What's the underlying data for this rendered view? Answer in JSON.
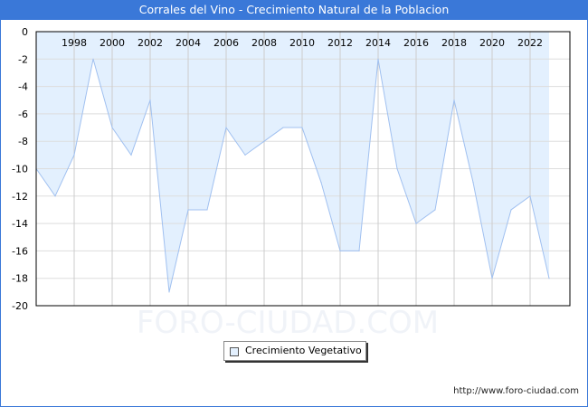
{
  "chart_data": {
    "type": "area",
    "title": "Corrales del Vino - Crecimiento Natural de la Poblacion",
    "x": [
      1996,
      1997,
      1998,
      1999,
      2000,
      2001,
      2002,
      2003,
      2004,
      2005,
      2006,
      2007,
      2008,
      2009,
      2010,
      2011,
      2012,
      2013,
      2014,
      2015,
      2016,
      2017,
      2018,
      2019,
      2020,
      2021,
      2022,
      2023
    ],
    "series": [
      {
        "name": "Crecimiento Vegetativo",
        "values": [
          -10,
          -12,
          -9,
          -2,
          -7,
          -9,
          -5,
          -19,
          -13,
          -13,
          -7,
          -9,
          -8,
          -7,
          -7,
          -11,
          -16,
          -16,
          -2,
          -10,
          -14,
          -13,
          -5,
          -11,
          -18,
          -13,
          -12,
          -18
        ]
      }
    ],
    "x_ticks": [
      "1998",
      "2000",
      "2002",
      "2004",
      "2006",
      "2008",
      "2010",
      "2012",
      "2014",
      "2016",
      "2018",
      "2020",
      "2022"
    ],
    "y_ticks": [
      "0",
      "-2",
      "-4",
      "-6",
      "-8",
      "-10",
      "-12",
      "-14",
      "-16",
      "-18",
      "-20"
    ],
    "ylim": [
      -20,
      0
    ],
    "xlim": [
      1996,
      2024
    ],
    "grid": true,
    "legend_position": "bottom-center",
    "fill_color": "#e3f0fe",
    "line_color": "#a0c0f0"
  },
  "watermark": "FORO-CIUDAD.COM",
  "url": "http://www.foro-ciudad.com"
}
